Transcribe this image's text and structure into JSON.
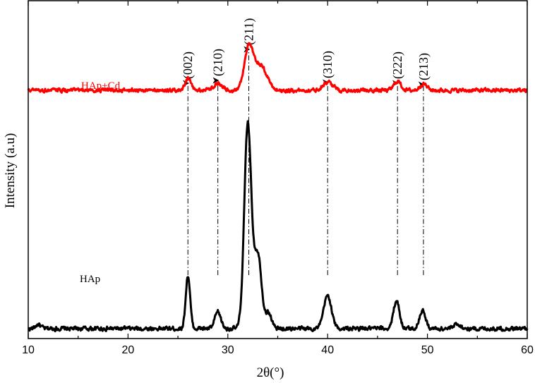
{
  "chart_data": {
    "type": "line",
    "xlabel": "2θ(°)",
    "ylabel": "Intensity (a.u)",
    "xlim": [
      10,
      60
    ],
    "xticks": [
      10,
      20,
      30,
      40,
      50,
      60
    ],
    "y_tick_labels": false,
    "grid": false,
    "series": [
      {
        "name": "HAp",
        "color": "#000000",
        "baseline": 10,
        "noise": 2.2,
        "peaks": [
          {
            "x": 11.0,
            "h": 5,
            "w": 0.25
          },
          {
            "x": 26.0,
            "h": 64,
            "w": 0.22
          },
          {
            "x": 29.0,
            "h": 20,
            "w": 0.3
          },
          {
            "x": 32.0,
            "h": 245,
            "w": 0.35
          },
          {
            "x": 33.0,
            "h": 90,
            "w": 0.38
          },
          {
            "x": 34.1,
            "h": 18,
            "w": 0.3
          },
          {
            "x": 40.0,
            "h": 40,
            "w": 0.38
          },
          {
            "x": 46.9,
            "h": 34,
            "w": 0.3
          },
          {
            "x": 49.5,
            "h": 22,
            "w": 0.3
          },
          {
            "x": 53.0,
            "h": 6,
            "w": 0.3
          }
        ]
      },
      {
        "name": "HAp+Cd",
        "color": "#ff0000",
        "baseline": 297,
        "noise": 2.0,
        "peaks": [
          {
            "x": 26.0,
            "h": 14,
            "w": 0.3
          },
          {
            "x": 29.0,
            "h": 8,
            "w": 0.5
          },
          {
            "x": 32.1,
            "h": 53,
            "w": 0.45
          },
          {
            "x": 33.2,
            "h": 28,
            "w": 0.5
          },
          {
            "x": 34.0,
            "h": 8,
            "w": 0.4
          },
          {
            "x": 40.0,
            "h": 10,
            "w": 0.5
          },
          {
            "x": 47.0,
            "h": 11,
            "w": 0.35
          },
          {
            "x": 49.6,
            "h": 8,
            "w": 0.35
          }
        ]
      }
    ],
    "ylim": [
      -2,
      405
    ],
    "peak_annotations": [
      {
        "label": "(002)",
        "x": 26.0
      },
      {
        "label": "(210)",
        "x": 29.0
      },
      {
        "label": "(211)",
        "x": 32.1
      },
      {
        "label": "(310)",
        "x": 40.0
      },
      {
        "label": "(222)",
        "x": 47.0
      },
      {
        "label": "(213)",
        "x": 49.6
      }
    ]
  }
}
